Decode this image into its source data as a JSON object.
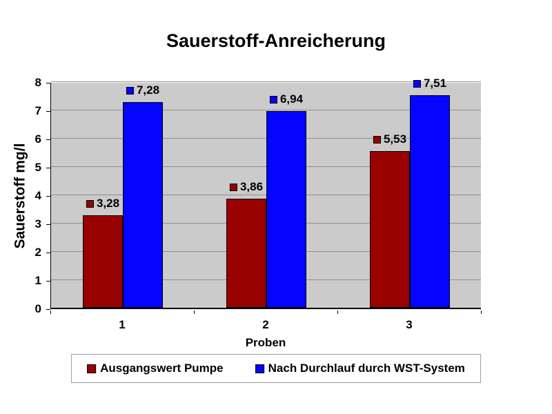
{
  "chart_data": {
    "type": "bar",
    "title": "Sauerstoff-Anreicherung",
    "xlabel": "Proben",
    "ylabel": "Sauerstoff mg/l",
    "categories": [
      "1",
      "2",
      "3"
    ],
    "series": [
      {
        "name": "Ausgangswert Pumpe",
        "color": "#990000",
        "values": [
          3.28,
          3.86,
          5.53
        ],
        "value_labels": [
          "3,28",
          "3,86",
          "5,53"
        ]
      },
      {
        "name": "Nach Durchlauf durch WST-System",
        "color": "#0505FF",
        "values": [
          7.28,
          6.94,
          7.51
        ],
        "value_labels": [
          "7,28",
          "6,94",
          "7,51"
        ]
      }
    ],
    "ylim": [
      0,
      8
    ],
    "ytick_step": 1,
    "ytick_labels": [
      "0",
      "1",
      "2",
      "3",
      "4",
      "5",
      "6",
      "7",
      "8"
    ],
    "grid": true,
    "legend_position": "bottom",
    "colors": {
      "plot_background": "#CBCBCB",
      "gridline": "#8F8F8F",
      "axis": "#000000",
      "text": "#000000",
      "legend_border": "#9A9A9A"
    }
  }
}
